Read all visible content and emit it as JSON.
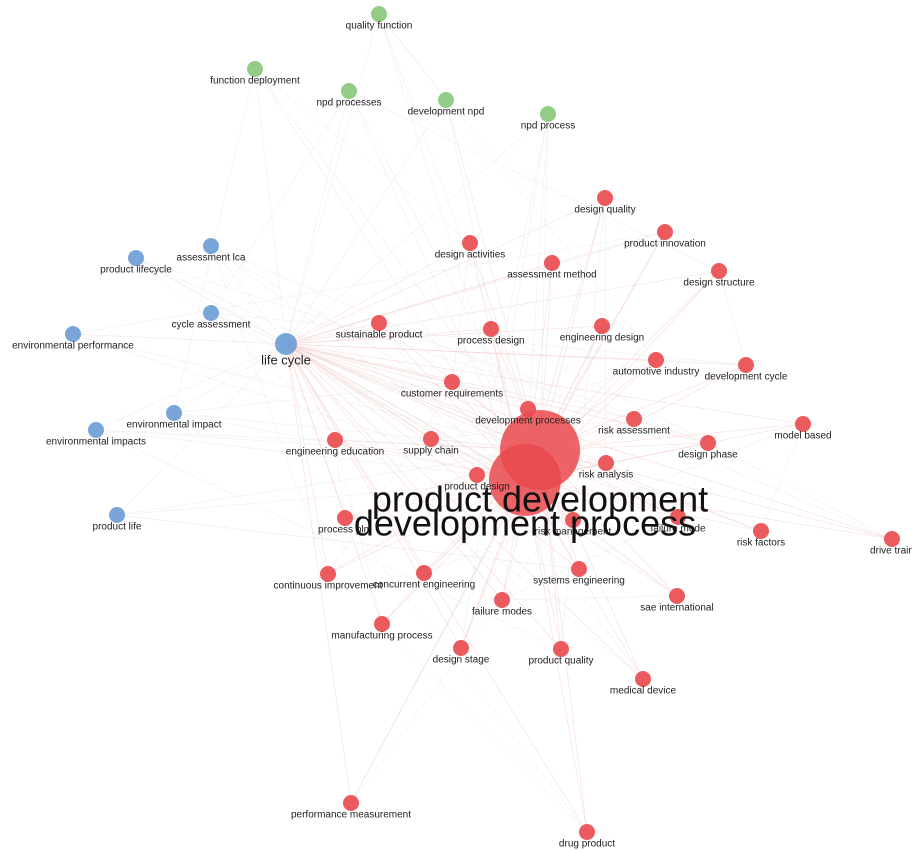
{
  "nodes": [
    {
      "label": "quality function"
    },
    {
      "label": "function deployment"
    },
    {
      "label": "npd processes"
    },
    {
      "label": "development npd"
    },
    {
      "label": "npd process"
    },
    {
      "label": "assessment lca"
    },
    {
      "label": "product lifecycle"
    },
    {
      "label": "cycle assessment"
    },
    {
      "label": "environmental performance"
    },
    {
      "label": "life cycle"
    },
    {
      "label": "environmental impact"
    },
    {
      "label": "environmental impacts"
    },
    {
      "label": "product life"
    },
    {
      "label": "design quality"
    },
    {
      "label": "design activities"
    },
    {
      "label": "product innovation"
    },
    {
      "label": "assessment method"
    },
    {
      "label": "design structure"
    },
    {
      "label": "sustainable product"
    },
    {
      "label": "process design"
    },
    {
      "label": "engineering design"
    },
    {
      "label": "automotive industry"
    },
    {
      "label": "development cycle"
    },
    {
      "label": "customer requirements"
    },
    {
      "label": "development processes"
    },
    {
      "label": "risk assessment"
    },
    {
      "label": "model based"
    },
    {
      "label": "engineering education"
    },
    {
      "label": "supply chain"
    },
    {
      "label": "design phase"
    },
    {
      "label": "risk analysis"
    },
    {
      "label": "product design"
    },
    {
      "label": "process plm"
    },
    {
      "label": "risk management"
    },
    {
      "label": "failure mode"
    },
    {
      "label": "risk factors"
    },
    {
      "label": "drive train"
    },
    {
      "label": "systems engineering"
    },
    {
      "label": "continuous improvement"
    },
    {
      "label": "concurrent engineering"
    },
    {
      "label": "sae international"
    },
    {
      "label": "failure modes"
    },
    {
      "label": "manufacturing process"
    },
    {
      "label": "design stage"
    },
    {
      "label": "product quality"
    },
    {
      "label": "medical device"
    },
    {
      "label": "performance measurement"
    },
    {
      "label": "drug product"
    },
    {
      "label": "development process"
    },
    {
      "label": "product development"
    }
  ]
}
